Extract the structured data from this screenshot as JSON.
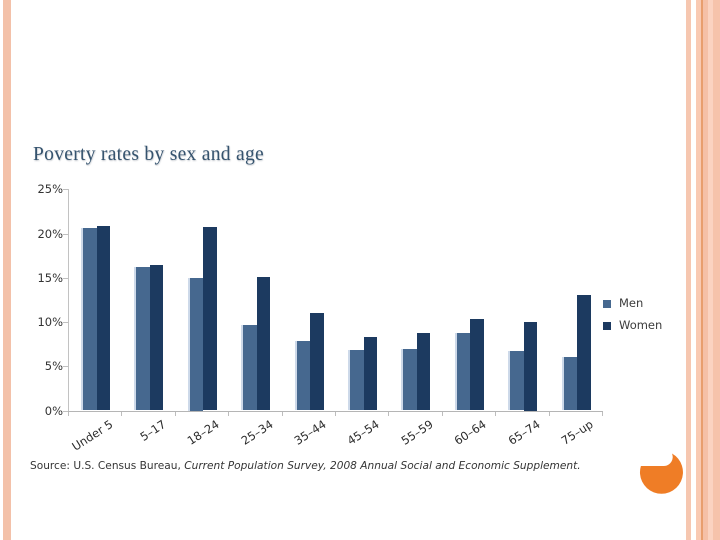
{
  "slide": {
    "source": {
      "prefix": "Source: U.S. Census Bureau, ",
      "italic": "Current Population Survey, 2008 Annual Social and Economic Supplement."
    }
  },
  "chart_data": {
    "type": "bar",
    "title": "Poverty rates by sex and age",
    "categories": [
      "Under 5",
      "5–17",
      "18–24",
      "25–34",
      "35–44",
      "45–54",
      "55–59",
      "60–64",
      "65–74",
      "75–up"
    ],
    "series": [
      {
        "name": "Men",
        "color": "#46688f",
        "values": [
          20.6,
          16.2,
          15.0,
          9.7,
          7.8,
          6.8,
          6.9,
          8.8,
          6.7,
          6.1
        ]
      },
      {
        "name": "Women",
        "color": "#1c3a60",
        "values": [
          20.9,
          16.4,
          20.7,
          15.1,
          11.0,
          8.3,
          8.8,
          10.3,
          10.0,
          13.0
        ]
      }
    ],
    "xlabel": "",
    "ylabel": "",
    "ylim": [
      0,
      25
    ],
    "ytick_step": 5,
    "ytick_labels": [
      "0%",
      "5%",
      "10%",
      "15%",
      "20%",
      "25%"
    ],
    "legend_position": "right-middle",
    "grid": false
  },
  "decor": {
    "left_stripe_color": "#f3c1a9",
    "right_stripe_colors": [
      "#f6c7b0",
      "#f9cab3",
      "#e89e6e",
      "#f5c0a7",
      "#fbd3c1",
      "#f6c3ab"
    ],
    "accent_shape": "orange-three-quarter-circle",
    "accent_color": "#ef7d26"
  }
}
